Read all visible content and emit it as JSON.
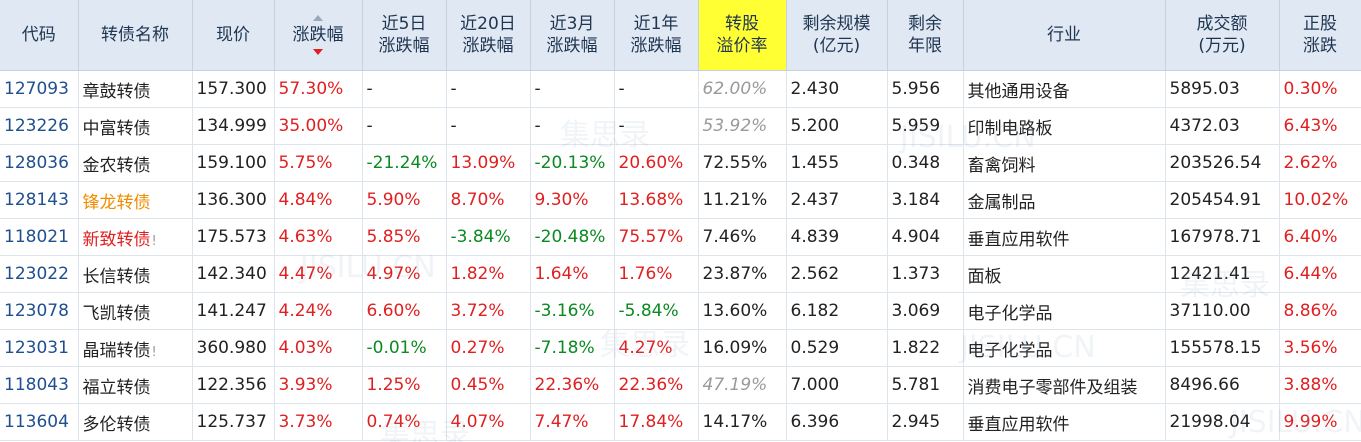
{
  "headers": [
    {
      "key": "code",
      "label": "代码"
    },
    {
      "key": "name",
      "label": "转债名称"
    },
    {
      "key": "price",
      "label": "现价"
    },
    {
      "key": "change",
      "label": "涨跌幅",
      "sorted": true
    },
    {
      "key": "chg5",
      "label": "近5日\n涨跌幅"
    },
    {
      "key": "chg20",
      "label": "近20日\n涨跌幅"
    },
    {
      "key": "chg3m",
      "label": "近3月\n涨跌幅"
    },
    {
      "key": "chg1y",
      "label": "近1年\n涨跌幅"
    },
    {
      "key": "premium",
      "label": "转股\n溢价率",
      "highlight": true
    },
    {
      "key": "scale",
      "label": "剩余规模\n(亿元)"
    },
    {
      "key": "years",
      "label": "剩余\n年限"
    },
    {
      "key": "industry",
      "label": "行业"
    },
    {
      "key": "volume",
      "label": "成交额\n(万元)"
    },
    {
      "key": "stock_chg",
      "label": "正股\n涨跌"
    }
  ],
  "colors": {
    "up": "#e02020",
    "down": "#0a8a20",
    "code": "#1f4f8f",
    "header_bg": "#dfe8f3",
    "highlight": "#ffff33"
  },
  "rows": [
    {
      "code": "127093",
      "name": "章鼓转债",
      "price": "157.300",
      "change": "57.30%",
      "chg5": "-",
      "chg20": "-",
      "chg3m": "-",
      "chg1y": "-",
      "premium": "62.00%",
      "premium_gray": true,
      "scale": "2.430",
      "years": "5.956",
      "industry": "其他通用设备",
      "volume": "5895.03",
      "stock_chg": "0.30%"
    },
    {
      "code": "123226",
      "name": "中富转债",
      "price": "134.999",
      "change": "35.00%",
      "chg5": "-",
      "chg20": "-",
      "chg3m": "-",
      "chg1y": "-",
      "premium": "53.92%",
      "premium_gray": true,
      "scale": "5.200",
      "years": "5.959",
      "industry": "印制电路板",
      "volume": "4372.03",
      "stock_chg": "6.43%"
    },
    {
      "code": "128036",
      "name": "金农转债",
      "price": "159.100",
      "change": "5.75%",
      "chg5": "-21.24%",
      "chg20": "13.09%",
      "chg3m": "-20.13%",
      "chg1y": "20.60%",
      "premium": "72.55%",
      "scale": "1.455",
      "years": "0.348",
      "industry": "畜禽饲料",
      "volume": "203526.54",
      "stock_chg": "2.62%"
    },
    {
      "code": "128143",
      "name": "锋龙转债",
      "name_style": "orange",
      "price": "136.300",
      "change": "4.84%",
      "chg5": "5.90%",
      "chg20": "8.70%",
      "chg3m": "9.30%",
      "chg1y": "13.68%",
      "premium": "11.21%",
      "scale": "2.437",
      "years": "3.184",
      "industry": "金属制品",
      "volume": "205454.91",
      "stock_chg": "10.02%"
    },
    {
      "code": "118021",
      "name": "新致转债",
      "name_style": "red",
      "mark": "!",
      "price": "175.573",
      "change": "4.63%",
      "chg5": "5.85%",
      "chg20": "-3.84%",
      "chg3m": "-20.48%",
      "chg1y": "75.57%",
      "premium": "7.46%",
      "scale": "4.839",
      "years": "4.904",
      "industry": "垂直应用软件",
      "volume": "167978.71",
      "stock_chg": "6.40%"
    },
    {
      "code": "123022",
      "name": "长信转债",
      "price": "142.340",
      "change": "4.47%",
      "chg5": "4.97%",
      "chg20": "1.82%",
      "chg3m": "1.64%",
      "chg1y": "1.76%",
      "premium": "23.87%",
      "scale": "2.562",
      "years": "1.373",
      "industry": "面板",
      "volume": "12421.41",
      "stock_chg": "6.44%"
    },
    {
      "code": "123078",
      "name": "飞凯转债",
      "price": "141.247",
      "change": "4.24%",
      "chg5": "6.60%",
      "chg20": "3.72%",
      "chg3m": "-3.16%",
      "chg1y": "-5.84%",
      "premium": "13.60%",
      "scale": "6.182",
      "years": "3.069",
      "industry": "电子化学品",
      "volume": "37110.00",
      "stock_chg": "8.86%"
    },
    {
      "code": "123031",
      "name": "晶瑞转债",
      "mark": "!",
      "price": "360.980",
      "change": "4.03%",
      "chg5": "-0.01%",
      "chg20": "0.27%",
      "chg3m": "-7.18%",
      "chg1y": "4.27%",
      "premium": "16.09%",
      "scale": "0.529",
      "years": "1.822",
      "industry": "电子化学品",
      "volume": "155578.15",
      "stock_chg": "3.56%"
    },
    {
      "code": "118043",
      "name": "福立转债",
      "price": "122.356",
      "change": "3.93%",
      "chg5": "1.25%",
      "chg20": "0.45%",
      "chg3m": "22.36%",
      "chg1y": "22.36%",
      "premium": "47.19%",
      "premium_gray": true,
      "scale": "7.000",
      "years": "5.781",
      "industry": "消费电子零部件及组装",
      "volume": "8496.66",
      "stock_chg": "3.88%"
    },
    {
      "code": "113604",
      "name": "多伦转债",
      "price": "125.737",
      "change": "3.73%",
      "chg5": "0.74%",
      "chg20": "4.07%",
      "chg3m": "7.47%",
      "chg1y": "17.84%",
      "premium": "14.17%",
      "scale": "6.396",
      "years": "2.945",
      "industry": "垂直应用软件",
      "volume": "21998.04",
      "stock_chg": "9.99%"
    }
  ],
  "watermarks": [
    "集思录",
    "JISILU.CN"
  ]
}
